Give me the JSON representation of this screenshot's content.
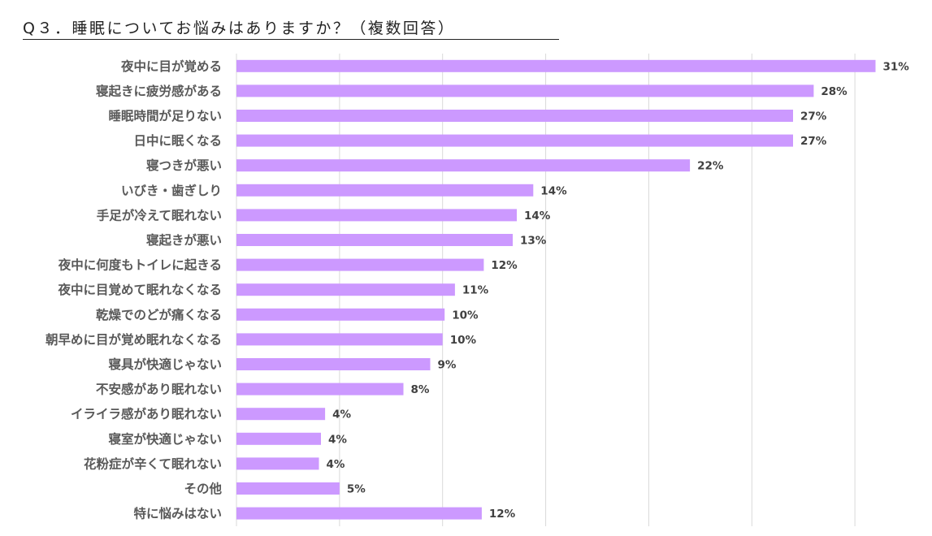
{
  "title": "Q３．睡眠についてお悩みはありますか？（複数回答）",
  "colors": {
    "bar": "#CC99FF",
    "grid": "#D9D9D9",
    "label": "#595959",
    "value_label": "#404040"
  },
  "chart_data": {
    "type": "bar",
    "orientation": "horizontal",
    "title": "Q３．睡眠についてお悩みはありますか？（複数回答）",
    "xlim": [
      0,
      0.35
    ],
    "grid": true,
    "categories": [
      "夜中に目が覚める",
      "寝起きに疲労感がある",
      "睡眠時間が足りない",
      "日中に眠くなる",
      "寝つきが悪い",
      "いびき・歯ぎしり",
      "手足が冷えて眠れない",
      "寝起きが悪い",
      "夜中に何度もトイレに起きる",
      "夜中に目覚めて眠れなくなる",
      "乾燥でのどが痛くなる",
      "朝早めに目が覚め眠れなくなる",
      "寝具が快適じゃない",
      "不安感があり眠れない",
      "イライラ感があり眠れない",
      "寝室が快適じゃない",
      "花粉症が辛くて眠れない",
      "その他",
      "特に悩みはない"
    ],
    "values": [
      0.31,
      0.28,
      0.27,
      0.27,
      0.22,
      0.144,
      0.136,
      0.134,
      0.12,
      0.106,
      0.101,
      0.1,
      0.094,
      0.081,
      0.043,
      0.041,
      0.04,
      0.05,
      0.119
    ],
    "value_labels": [
      "31%",
      "28%",
      "27%",
      "27%",
      "22%",
      "14%",
      "14%",
      "13%",
      "12%",
      "11%",
      "10%",
      "10%",
      "9%",
      "8%",
      "4%",
      "4%",
      "4%",
      "5%",
      "12%"
    ]
  }
}
